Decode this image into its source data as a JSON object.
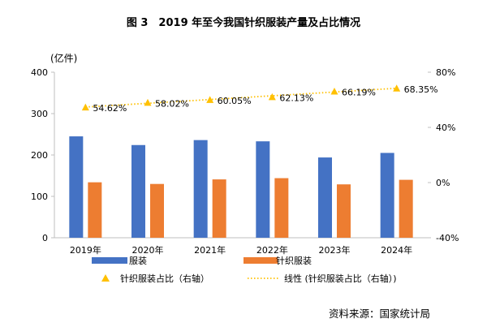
{
  "chart_data": {
    "type": "bar",
    "title": "图 3　2019 年至今我国针织服装产量及占比情况",
    "y_unit_label": "(亿件)",
    "categories": [
      "2019年",
      "2020年",
      "2021年",
      "2022年",
      "2023年",
      "2024年"
    ],
    "ylim": [
      0,
      400
    ],
    "yticks": [
      "0",
      "100",
      "200",
      "300",
      "400"
    ],
    "y2lim": [
      -40,
      80
    ],
    "y2ticks": [
      "-40%",
      "0%",
      "40%",
      "80%"
    ],
    "grid": false,
    "legend_placement": "bottom",
    "series": [
      {
        "name": "服装",
        "type": "bar",
        "axis": "left",
        "color": "#4472C4",
        "values": [
          245,
          224,
          236,
          233,
          194,
          205
        ]
      },
      {
        "name": "针织服装",
        "type": "bar",
        "axis": "right-none",
        "color": "#ED7D31",
        "values": [
          134,
          130,
          141,
          144,
          129,
          140
        ]
      },
      {
        "name": "针织服装占比（右轴）",
        "type": "scatter",
        "axis": "right",
        "marker": "triangle",
        "color": "#FFC000",
        "values": [
          54.62,
          58.02,
          60.05,
          62.13,
          66.19,
          68.35
        ],
        "labels": [
          "54.62%",
          "58.02%",
          "60.05%",
          "62.13%",
          "66.19%",
          "68.35%"
        ]
      },
      {
        "name": "线性 (针织服装占比（右轴）)",
        "type": "trendline",
        "fit": "linear",
        "of": "针织服装占比（右轴）",
        "color": "#FFC000",
        "style": "dotted"
      }
    ]
  },
  "source": "资料来源：国家统计局"
}
